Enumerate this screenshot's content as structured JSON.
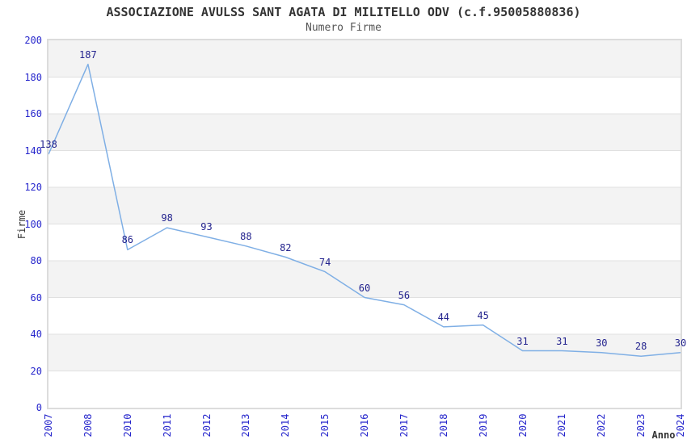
{
  "header": {
    "title": "ASSOCIAZIONE AVULSS SANT AGATA DI MILITELLO ODV (c.f.95005880836)",
    "subtitle": "Numero Firme"
  },
  "chart_data": {
    "type": "line",
    "title": "ASSOCIAZIONE AVULSS SANT AGATA DI MILITELLO ODV (c.f.95005880836)",
    "subtitle": "Numero Firme",
    "xlabel": "Anno",
    "ylabel": "Firme",
    "categories": [
      "2007",
      "2008",
      "2010",
      "2011",
      "2012",
      "2013",
      "2014",
      "2015",
      "2016",
      "2017",
      "2018",
      "2019",
      "2020",
      "2021",
      "2022",
      "2023",
      "2024"
    ],
    "series": [
      {
        "name": "Numero Firme",
        "values": [
          138,
          187,
          86,
          98,
          93,
          88,
          82,
          74,
          60,
          56,
          44,
          45,
          31,
          31,
          30,
          28,
          30
        ]
      }
    ],
    "ylim": [
      0,
      200
    ],
    "ytick_step": 20,
    "yticks": [
      0,
      20,
      40,
      60,
      80,
      100,
      120,
      140,
      160,
      180,
      200
    ],
    "grid": true,
    "legend": "none",
    "point_labels": true,
    "colors": {
      "line": "#7fafe5",
      "point_label": "#23238e",
      "axis_tick": "#2626cc",
      "title": "#333333",
      "subtitle": "#555555",
      "band_gray": "#f3f3f3",
      "band_white": "#ffffff",
      "gridline": "#e0e0e0",
      "plot_border": "#dcdcdc"
    }
  }
}
